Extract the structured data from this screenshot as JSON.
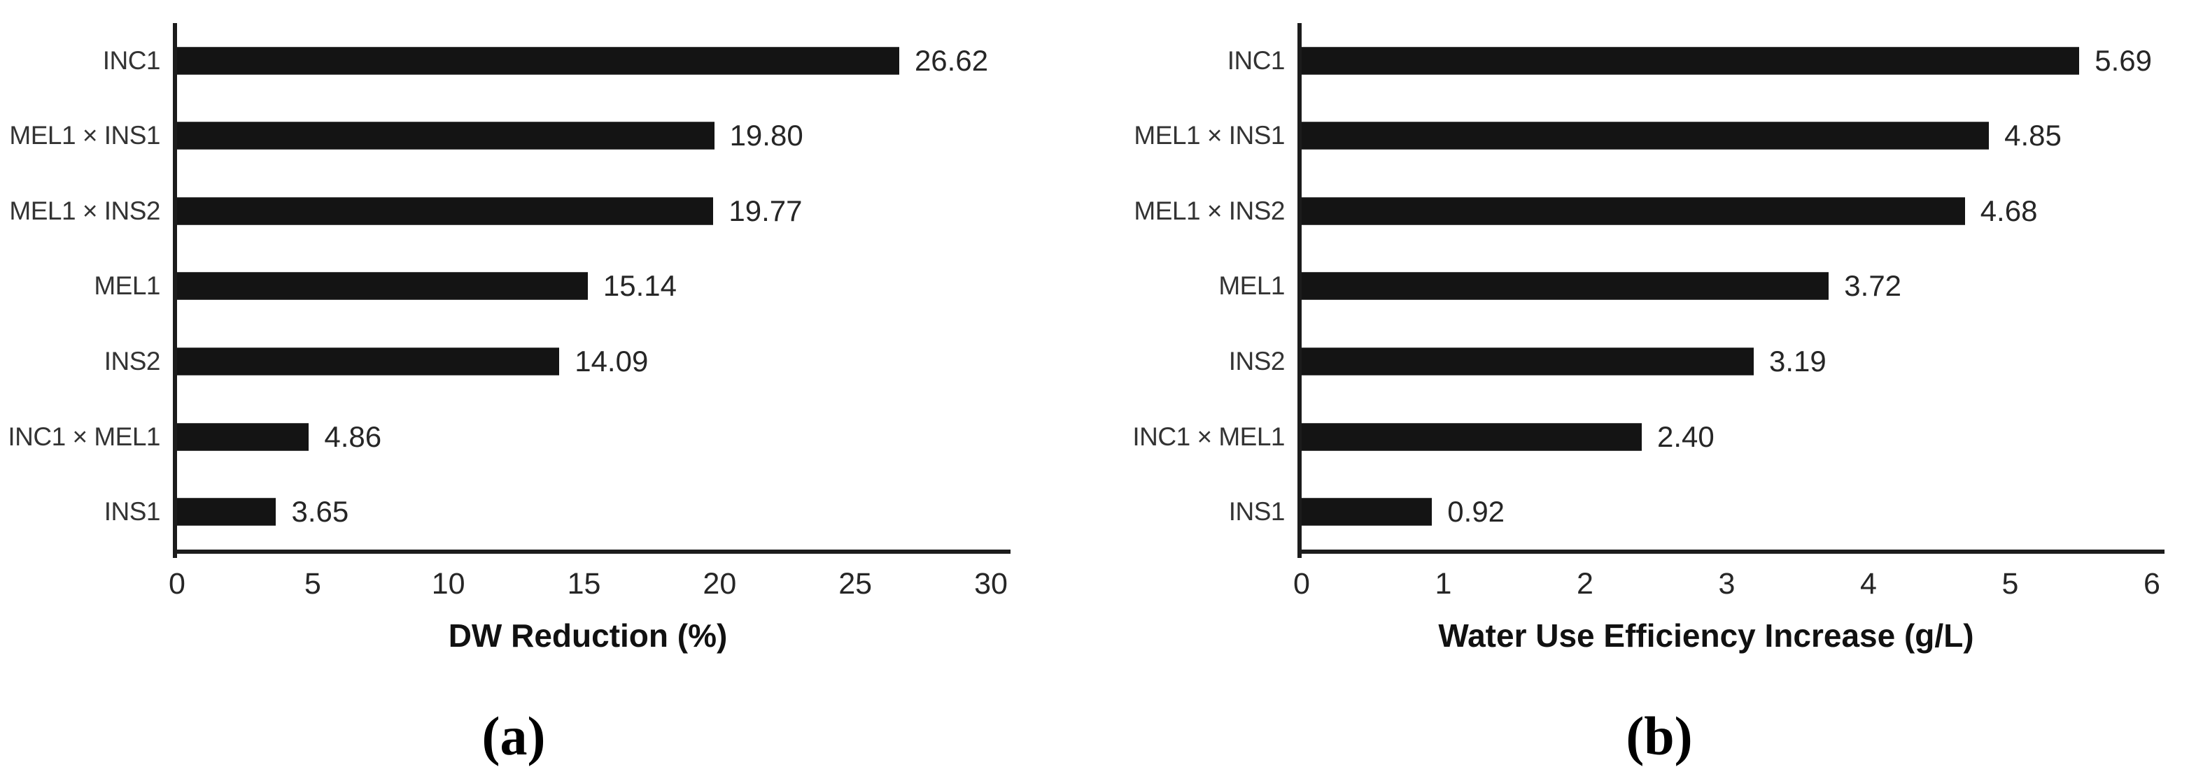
{
  "figure": {
    "background": "#ffffff",
    "bar_color": "#141414",
    "axis_color": "#1c1c1c",
    "text_color": "#262626",
    "category_label_color": "#333333",
    "title_color": "#111111"
  },
  "chart_data": [
    {
      "type": "bar",
      "orientation": "horizontal",
      "panel_label": "(a)",
      "title": "",
      "xlabel": "DW Reduction (%)",
      "ylabel": "",
      "categories": [
        "INC1",
        "MEL1 × INS1",
        "MEL1 × INS2",
        "MEL1",
        "INS2",
        "INC1 × MEL1",
        "INS1"
      ],
      "values": [
        26.62,
        19.8,
        19.77,
        15.14,
        14.09,
        4.86,
        3.65
      ],
      "value_labels": [
        "26.62",
        "19.80",
        "19.77",
        "15.14",
        "14.09",
        "4.86",
        "3.65"
      ],
      "xlim": [
        0,
        30
      ],
      "xticks": [
        "0",
        "5",
        "10",
        "15",
        "20",
        "25",
        "30"
      ],
      "grid": false,
      "legend": "none"
    },
    {
      "type": "bar",
      "orientation": "horizontal",
      "panel_label": "(b)",
      "title": "",
      "xlabel": "Water Use Efficiency Increase (g/L)",
      "ylabel": "",
      "categories": [
        "INC1",
        "MEL1 × INS1",
        "MEL1 × INS2",
        "MEL1",
        "INS2",
        "INC1 × MEL1",
        "INS1"
      ],
      "values": [
        5.69,
        4.85,
        4.68,
        3.72,
        3.19,
        2.4,
        0.92
      ],
      "value_labels": [
        "5.69",
        "4.85",
        "4.68",
        "3.72",
        "3.19",
        "2.40",
        "0.92"
      ],
      "xlim": [
        0,
        6
      ],
      "xticks": [
        "0",
        "1",
        "2",
        "3",
        "4",
        "5",
        "6"
      ],
      "grid": false,
      "legend": "none"
    }
  ]
}
